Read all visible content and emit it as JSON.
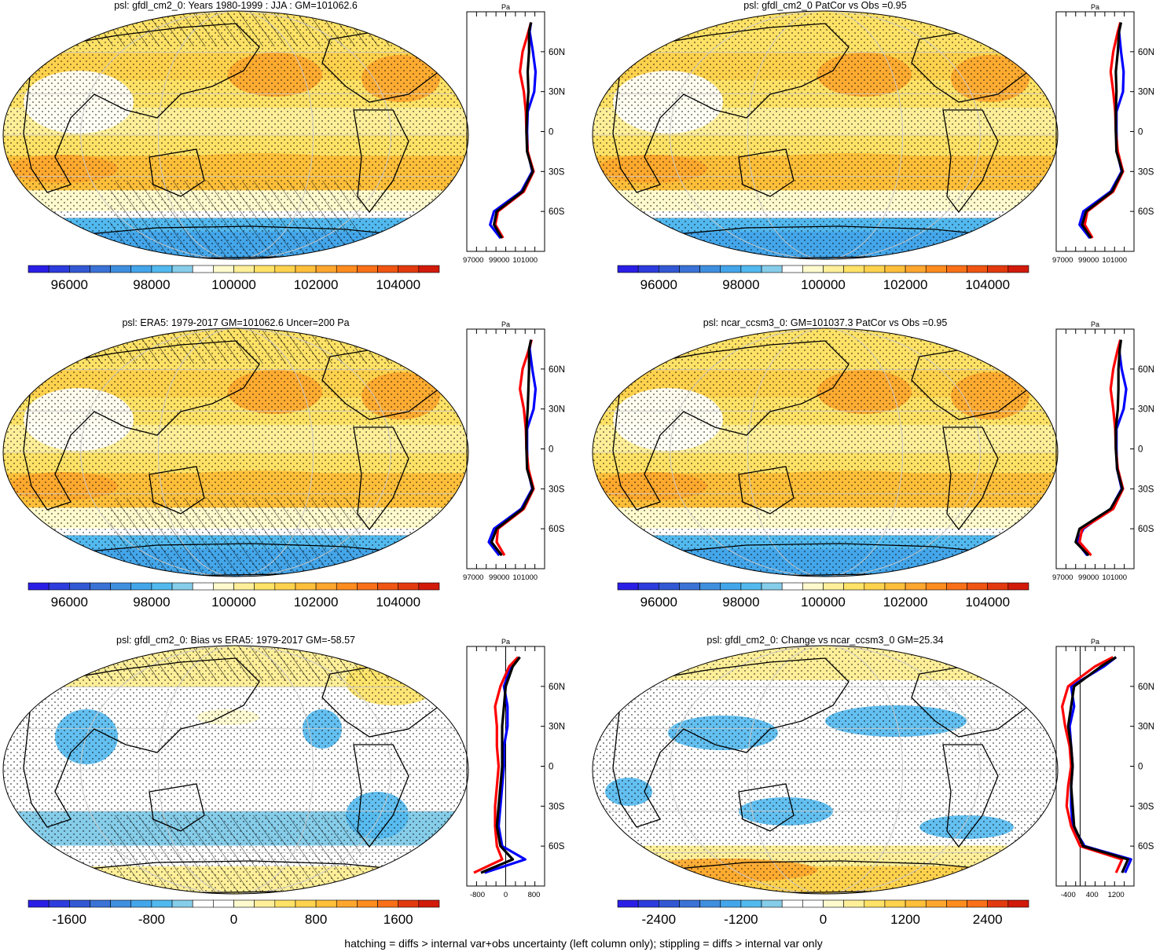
{
  "footer": "hatching = diffs > internal var+obs uncertainty (left column only); stippling = diffs > internal var only",
  "colors": {
    "mean_palette": [
      "#2a1ee6",
      "#2d3cdd",
      "#3258d4",
      "#3a72d6",
      "#3f8fdf",
      "#44a6ea",
      "#52b9ef",
      "#86cde9",
      "#ffffff",
      "#fffacd",
      "#ffef99",
      "#ffe266",
      "#ffd24d",
      "#ffbf3a",
      "#ffa62e",
      "#ff8c1f",
      "#f97018",
      "#f05512",
      "#e3390e",
      "#d21a0a"
    ],
    "diff_palette": [
      "#2a1ee6",
      "#2d3cdd",
      "#3258d4",
      "#3a72d6",
      "#3f8fdf",
      "#44a6ea",
      "#52b9ef",
      "#86cde9",
      "#ffffff",
      "#ffffff",
      "#fffacd",
      "#ffef99",
      "#ffe266",
      "#ffd24d",
      "#ffbf3a",
      "#ffa62e",
      "#ff8c1f",
      "#f97018",
      "#e3390e",
      "#d21a0a"
    ],
    "zonal_model": "#000000",
    "zonal_obs_a": "#0000ff",
    "zonal_obs_b": "#ff0000"
  },
  "panels": [
    {
      "title": "psl: gfdl_cm2_0: Years 1980-1999 : JJA : GM=101062.6",
      "map_kind": "mean",
      "hatching": true,
      "colorbar_labels": [
        "96000",
        "98000",
        "100000",
        "102000",
        "104000"
      ],
      "chart_data": {
        "type": "line",
        "title": "Pa",
        "x_ticks": [
          "97000",
          "99000",
          "101000"
        ],
        "y_ticks": [
          "60N",
          "30N",
          "0",
          "30S",
          "60S"
        ],
        "xlim": [
          96500,
          102500
        ],
        "ylim": [
          -90,
          90
        ],
        "lat": [
          82,
          75,
          60,
          45,
          30,
          15,
          0,
          -15,
          -30,
          -45,
          -60,
          -70,
          -80
        ],
        "series": [
          {
            "name": "model",
            "values": [
              101450,
              101300,
              101300,
              101200,
              101250,
              101150,
              101100,
              101150,
              101600,
              100800,
              98800,
              98600,
              99200
            ]
          },
          {
            "name": "obs_a",
            "values": [
              101450,
              101350,
              101600,
              101800,
              101700,
              101200,
              101150,
              101200,
              101550,
              100700,
              98600,
              98300,
              99100
            ]
          },
          {
            "name": "obs_b",
            "values": [
              101450,
              101250,
              100800,
              100600,
              100900,
              101050,
              101100,
              101200,
              101650,
              100900,
              98900,
              98700,
              99300
            ]
          }
        ]
      }
    },
    {
      "title": "psl: gfdl_cm2_0 PatCor vs Obs =0.95",
      "map_kind": "mean",
      "hatching": false,
      "colorbar_labels": [
        "96000",
        "98000",
        "100000",
        "102000",
        "104000"
      ],
      "chart_data": {
        "type": "line",
        "title": "Pa",
        "x_ticks": [
          "97000",
          "99000",
          "101000"
        ],
        "y_ticks": [
          "60N",
          "30N",
          "0",
          "30S",
          "60S"
        ],
        "xlim": [
          96500,
          102500
        ],
        "ylim": [
          -90,
          90
        ],
        "lat": [
          82,
          75,
          60,
          45,
          30,
          15,
          0,
          -15,
          -30,
          -45,
          -60,
          -70,
          -80
        ],
        "series": [
          {
            "name": "model",
            "values": [
              101500,
              101350,
              101250,
              101100,
              101150,
              101100,
              101100,
              101150,
              101600,
              100800,
              98800,
              98500,
              99200
            ]
          },
          {
            "name": "obs_a",
            "values": [
              101450,
              101350,
              101500,
              101700,
              101650,
              101150,
              101150,
              101200,
              101550,
              100700,
              98600,
              98300,
              99100
            ]
          },
          {
            "name": "obs_b",
            "values": [
              101450,
              101250,
              100900,
              100700,
              100900,
              101050,
              101100,
              101250,
              101650,
              100900,
              98900,
              98700,
              99300
            ]
          }
        ]
      }
    },
    {
      "title": "psl: ERA5: 1979-2017 GM=101062.6 Uncer=200 Pa",
      "map_kind": "mean",
      "hatching": true,
      "colorbar_labels": [
        "96000",
        "98000",
        "100000",
        "102000",
        "104000"
      ],
      "chart_data": {
        "type": "line",
        "title": "Pa",
        "x_ticks": [
          "97000",
          "99000",
          "101000"
        ],
        "y_ticks": [
          "60N",
          "30N",
          "0",
          "30S",
          "60S"
        ],
        "xlim": [
          96500,
          102500
        ],
        "ylim": [
          -90,
          90
        ],
        "lat": [
          82,
          75,
          60,
          45,
          30,
          15,
          0,
          -15,
          -30,
          -45,
          -60,
          -70,
          -80
        ],
        "series": [
          {
            "name": "model",
            "values": [
              101450,
              101300,
              101300,
              101250,
              101200,
              101100,
              101100,
              101150,
              101600,
              100800,
              98800,
              98400,
              99200
            ]
          },
          {
            "name": "obs_a",
            "values": [
              101450,
              101350,
              101550,
              101800,
              101650,
              101150,
              101150,
              101200,
              101550,
              100700,
              98600,
              98200,
              99000
            ]
          },
          {
            "name": "obs_b",
            "values": [
              101500,
              101300,
              100800,
              100600,
              100900,
              101050,
              101100,
              101250,
              101650,
              100900,
              98900,
              98800,
              99400
            ]
          }
        ]
      }
    },
    {
      "title": "psl: ncar_ccsm3_0: GM=101037.3 PatCor vs Obs =0.95",
      "map_kind": "mean",
      "hatching": false,
      "colorbar_labels": [
        "96000",
        "98000",
        "100000",
        "102000",
        "104000"
      ],
      "chart_data": {
        "type": "line",
        "title": "Pa",
        "x_ticks": [
          "97000",
          "99000",
          "101000"
        ],
        "y_ticks": [
          "60N",
          "30N",
          "0",
          "30S",
          "60S"
        ],
        "xlim": [
          96500,
          102500
        ],
        "ylim": [
          -90,
          90
        ],
        "lat": [
          82,
          75,
          60,
          45,
          30,
          15,
          0,
          -15,
          -30,
          -45,
          -60,
          -70,
          -80
        ],
        "series": [
          {
            "name": "model",
            "values": [
              101500,
              101400,
              101300,
              101300,
              101250,
              101100,
              101100,
              101200,
              101600,
              100700,
              98300,
              98000,
              99000
            ]
          },
          {
            "name": "obs_a",
            "values": [
              101450,
              101350,
              101550,
              101900,
              101700,
              101150,
              101150,
              101200,
              101550,
              100700,
              98600,
              98100,
              98900
            ]
          },
          {
            "name": "obs_b",
            "values": [
              101450,
              101250,
              100900,
              100700,
              100900,
              101050,
              101100,
              101250,
              101650,
              100900,
              98500,
              98300,
              99200
            ]
          }
        ]
      }
    },
    {
      "title": "psl: gfdl_cm2_0: Bias vs ERA5: 1979-2017 GM=-58.57",
      "map_kind": "bias",
      "hatching": true,
      "colorbar_labels": [
        "-1600",
        "-800",
        "0",
        "800",
        "1600"
      ],
      "chart_data": {
        "type": "line",
        "title": "Pa",
        "x_ticks": [
          "-800",
          "0",
          "800"
        ],
        "y_ticks": [
          "60N",
          "30N",
          "0",
          "30S",
          "60S"
        ],
        "xlim": [
          -1100,
          1100
        ],
        "ylim": [
          -90,
          90
        ],
        "zero_line": true,
        "lat": [
          82,
          75,
          60,
          45,
          30,
          15,
          0,
          -15,
          -30,
          -45,
          -60,
          -70,
          -80
        ],
        "series": [
          {
            "name": "model",
            "values": [
              400,
              200,
              0,
              -50,
              -100,
              -100,
              -100,
              -150,
              -200,
              -250,
              -150,
              200,
              -700
            ]
          },
          {
            "name": "obs_a",
            "values": [
              400,
              150,
              -50,
              50,
              50,
              -50,
              -50,
              -100,
              -150,
              -200,
              -100,
              550,
              -600
            ]
          },
          {
            "name": "obs_b",
            "values": [
              350,
              100,
              -150,
              -300,
              -250,
              -250,
              -200,
              -250,
              -300,
              -300,
              -250,
              -100,
              -900
            ]
          }
        ]
      }
    },
    {
      "title": "psl: gfdl_cm2_0: Change vs ncar_ccsm3_0 GM=25.34",
      "map_kind": "change",
      "hatching": false,
      "colorbar_labels": [
        "-2400",
        "-1200",
        "0",
        "1200",
        "2400"
      ],
      "chart_data": {
        "type": "line",
        "title": "Pa",
        "x_ticks": [
          "-400",
          "400",
          "1200"
        ],
        "y_ticks": [
          "60N",
          "30N",
          "0",
          "30S",
          "60S"
        ],
        "xlim": [
          -800,
          1800
        ],
        "ylim": [
          -90,
          90
        ],
        "zero_line": true,
        "lat": [
          82,
          75,
          60,
          45,
          30,
          15,
          0,
          -15,
          -30,
          -45,
          -60,
          -70,
          -80
        ],
        "series": [
          {
            "name": "model",
            "values": [
              1200,
              700,
              -200,
              -300,
              -400,
              -300,
              -250,
              -300,
              -250,
              -200,
              100,
              1600,
              1400
            ]
          },
          {
            "name": "obs_a",
            "values": [
              1200,
              800,
              -300,
              -200,
              -350,
              -300,
              -250,
              -300,
              -300,
              -250,
              150,
              1700,
              1500
            ]
          },
          {
            "name": "obs_b",
            "values": [
              1100,
              500,
              -400,
              -600,
              -500,
              -350,
              -300,
              -400,
              -450,
              -300,
              0,
              1400,
              1200
            ]
          }
        ]
      }
    }
  ]
}
